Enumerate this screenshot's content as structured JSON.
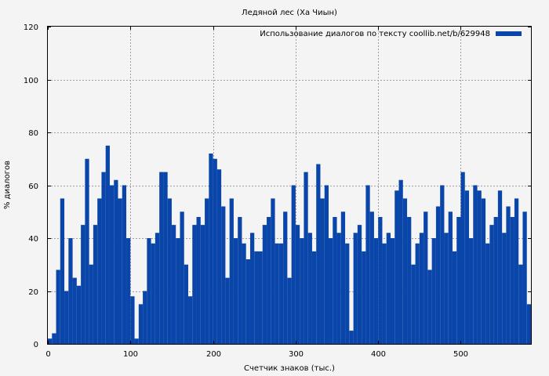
{
  "chart_data": {
    "type": "bar",
    "title": "Ледяной лес (Ха Чиын)",
    "xlabel": "Счетчик знаков (тыс.)",
    "ylabel": "% диалогов",
    "xlim": [
      0,
      585
    ],
    "ylim": [
      0,
      120
    ],
    "x_ticks": [
      0,
      100,
      200,
      300,
      400,
      500
    ],
    "y_ticks": [
      0,
      20,
      40,
      60,
      80,
      100,
      120
    ],
    "grid": true,
    "legend_position": "top-right",
    "colors": {
      "series": "#0a46aa",
      "grid": "#a0a0a0",
      "background": "#f4f4f4"
    },
    "series": [
      {
        "name": "Использование диалогов по тексту coollib.net/b/629948",
        "bin_width": 5,
        "x": [
          2.5,
          7.5,
          12.5,
          17.5,
          22.5,
          27.5,
          32.5,
          37.5,
          42.5,
          47.5,
          52.5,
          57.5,
          62.5,
          67.5,
          72.5,
          77.5,
          82.5,
          87.5,
          92.5,
          97.5,
          102.5,
          107.5,
          112.5,
          117.5,
          122.5,
          127.5,
          132.5,
          137.5,
          142.5,
          147.5,
          152.5,
          157.5,
          162.5,
          167.5,
          172.5,
          177.5,
          182.5,
          187.5,
          192.5,
          197.5,
          202.5,
          207.5,
          212.5,
          217.5,
          222.5,
          227.5,
          232.5,
          237.5,
          242.5,
          247.5,
          252.5,
          257.5,
          262.5,
          267.5,
          272.5,
          277.5,
          282.5,
          287.5,
          292.5,
          297.5,
          302.5,
          307.5,
          312.5,
          317.5,
          322.5,
          327.5,
          332.5,
          337.5,
          342.5,
          347.5,
          352.5,
          357.5,
          362.5,
          367.5,
          372.5,
          377.5,
          382.5,
          387.5,
          392.5,
          397.5,
          402.5,
          407.5,
          412.5,
          417.5,
          422.5,
          427.5,
          432.5,
          437.5,
          442.5,
          447.5,
          452.5,
          457.5,
          462.5,
          467.5,
          472.5,
          477.5,
          482.5,
          487.5,
          492.5,
          497.5,
          502.5,
          507.5,
          512.5,
          517.5,
          522.5,
          527.5,
          532.5,
          537.5,
          542.5,
          547.5,
          552.5,
          557.5,
          562.5,
          567.5,
          572.5,
          577.5,
          582.5
        ],
        "values": [
          2,
          4,
          28,
          55,
          20,
          40,
          25,
          22,
          45,
          70,
          30,
          45,
          55,
          65,
          75,
          60,
          62,
          55,
          60,
          40,
          18,
          2,
          15,
          20,
          40,
          38,
          42,
          65,
          65,
          55,
          45,
          40,
          50,
          30,
          18,
          45,
          48,
          45,
          55,
          72,
          70,
          66,
          52,
          25,
          55,
          40,
          48,
          38,
          32,
          42,
          35,
          35,
          45,
          48,
          55,
          38,
          38,
          50,
          25,
          60,
          45,
          40,
          65,
          42,
          35,
          68,
          55,
          60,
          40,
          48,
          42,
          50,
          38,
          5,
          42,
          45,
          35,
          60,
          50,
          40,
          48,
          38,
          42,
          40,
          58,
          62,
          55,
          48,
          30,
          38,
          42,
          50,
          28,
          40,
          52,
          60,
          42,
          50,
          35,
          48,
          65,
          58,
          40,
          60,
          58,
          55,
          38,
          45,
          48,
          58,
          42,
          52,
          48,
          55,
          30,
          50,
          15
        ]
      }
    ]
  }
}
